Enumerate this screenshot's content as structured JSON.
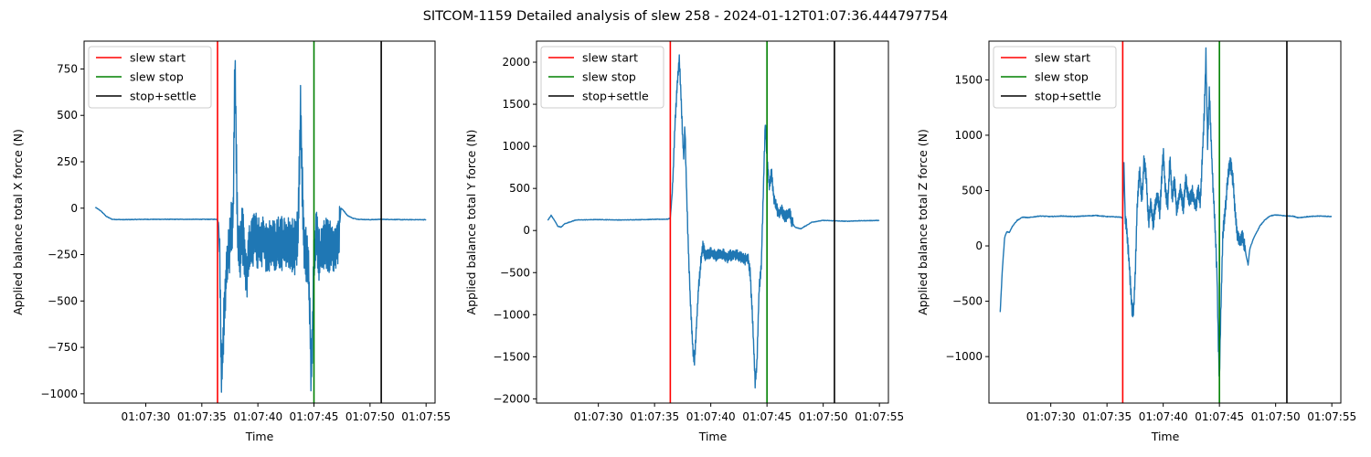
{
  "figure": {
    "suptitle": "SITCOM-1159 Detailed analysis of slew 258 - 2024-01-12T01:07:36.444797754"
  },
  "colors": {
    "data_line": "#1f77b4",
    "slew_start": "#ff0000",
    "slew_stop": "#008000",
    "stop_settle": "#000000"
  },
  "legend": {
    "placement": "upper-left",
    "entries": [
      {
        "label": "slew start",
        "color": "#ff0000"
      },
      {
        "label": "slew stop",
        "color": "#008000"
      },
      {
        "label": "stop+settle",
        "color": "#000000"
      }
    ]
  },
  "chart_data": [
    {
      "type": "line",
      "title": "",
      "xlabel": "Time",
      "ylabel": "Applied balance total X force (N)",
      "x_ticks": [
        "01:07:30",
        "01:07:35",
        "01:07:40",
        "01:07:45",
        "01:07:50",
        "01:07:55"
      ],
      "x_tick_seconds": [
        30,
        35,
        40,
        45,
        50,
        55
      ],
      "xlim_seconds": [
        24.5,
        55.8
      ],
      "ylim": [
        -1050,
        900
      ],
      "y_ticks": [
        750,
        500,
        250,
        0,
        -250,
        -500,
        -750,
        -1000
      ],
      "y_tick_labels": [
        "750",
        "500",
        "250",
        "0",
        "−250",
        "−500",
        "−750",
        "−1000"
      ],
      "vlines_seconds": {
        "slew_start": 36.4,
        "slew_stop": 45.0,
        "stop_settle": 51.0
      },
      "series": [
        {
          "style": "noisy",
          "points": [
            [
              25.5,
              5
            ],
            [
              26,
              -15
            ],
            [
              26.5,
              -45
            ],
            [
              27,
              -60
            ],
            [
              28,
              -62
            ],
            [
              30,
              -60
            ],
            [
              33,
              -60
            ],
            [
              35,
              -60
            ],
            [
              36.35,
              -60
            ],
            [
              36.5,
              -80
            ],
            [
              36.6,
              -300
            ],
            [
              36.7,
              -700
            ],
            [
              36.75,
              -870
            ],
            [
              36.85,
              -800
            ],
            [
              37,
              -550
            ],
            [
              37.2,
              -320
            ],
            [
              37.4,
              -250
            ],
            [
              37.6,
              -120
            ],
            [
              37.8,
              -30
            ],
            [
              37.95,
              815
            ],
            [
              38.05,
              400
            ],
            [
              38.2,
              -150
            ],
            [
              38.4,
              -260
            ],
            [
              38.6,
              -120
            ],
            [
              38.8,
              -240
            ],
            [
              39,
              -360
            ],
            [
              39.3,
              -210
            ],
            [
              39.7,
              -150
            ],
            [
              40,
              -200
            ],
            [
              40.5,
              -180
            ],
            [
              41,
              -210
            ],
            [
              41.5,
              -200
            ],
            [
              42,
              -180
            ],
            [
              42.5,
              -200
            ],
            [
              43,
              -190
            ],
            [
              43.4,
              -220
            ],
            [
              43.6,
              -100
            ],
            [
              43.8,
              540
            ],
            [
              43.95,
              150
            ],
            [
              44.1,
              -200
            ],
            [
              44.3,
              -250
            ],
            [
              44.5,
              -300
            ],
            [
              44.65,
              -600
            ],
            [
              44.75,
              -950
            ],
            [
              44.85,
              -700
            ],
            [
              45,
              -300
            ],
            [
              45.2,
              -150
            ],
            [
              45.5,
              -260
            ],
            [
              46,
              -200
            ],
            [
              46.5,
              -210
            ],
            [
              47,
              -200
            ],
            [
              47.2,
              -170
            ],
            [
              47.4,
              0
            ],
            [
              47.6,
              -10
            ],
            [
              48,
              -40
            ],
            [
              48.5,
              -55
            ],
            [
              49,
              -60
            ],
            [
              50,
              -62
            ],
            [
              51,
              -60
            ],
            [
              53,
              -62
            ],
            [
              55,
              -62
            ]
          ]
        }
      ]
    },
    {
      "type": "line",
      "title": "",
      "xlabel": "Time",
      "ylabel": "Applied balance total Y force (N)",
      "x_ticks": [
        "01:07:30",
        "01:07:35",
        "01:07:40",
        "01:07:45",
        "01:07:50",
        "01:07:55"
      ],
      "x_tick_seconds": [
        30,
        35,
        40,
        45,
        50,
        55
      ],
      "xlim_seconds": [
        24.5,
        55.8
      ],
      "ylim": [
        -2050,
        2250
      ],
      "y_ticks": [
        2000,
        1500,
        1000,
        500,
        0,
        -500,
        -1000,
        -1500,
        -2000
      ],
      "y_tick_labels": [
        "2000",
        "1500",
        "1000",
        "500",
        "0",
        "−500",
        "−1000",
        "−1500",
        "−2000"
      ],
      "vlines_seconds": {
        "slew_start": 36.4,
        "slew_stop": 45.0,
        "stop_settle": 51.0
      },
      "series": [
        {
          "style": "medium",
          "points": [
            [
              25.5,
              120
            ],
            [
              25.8,
              180
            ],
            [
              26.1,
              120
            ],
            [
              26.4,
              50
            ],
            [
              26.7,
              40
            ],
            [
              27,
              80
            ],
            [
              28,
              125
            ],
            [
              30,
              130
            ],
            [
              32,
              125
            ],
            [
              34,
              130
            ],
            [
              36.2,
              135
            ],
            [
              36.4,
              150
            ],
            [
              36.6,
              500
            ],
            [
              36.8,
              1200
            ],
            [
              37,
              1700
            ],
            [
              37.2,
              2030
            ],
            [
              37.35,
              1600
            ],
            [
              37.5,
              1100
            ],
            [
              37.6,
              850
            ],
            [
              37.7,
              1250
            ],
            [
              37.8,
              700
            ],
            [
              38,
              -200
            ],
            [
              38.2,
              -900
            ],
            [
              38.4,
              -1400
            ],
            [
              38.55,
              -1560
            ],
            [
              38.7,
              -1200
            ],
            [
              38.9,
              -700
            ],
            [
              39.1,
              -400
            ],
            [
              39.3,
              -180
            ],
            [
              39.5,
              -300
            ],
            [
              40,
              -260
            ],
            [
              40.5,
              -300
            ],
            [
              41,
              -280
            ],
            [
              41.5,
              -320
            ],
            [
              42,
              -280
            ],
            [
              42.5,
              -300
            ],
            [
              43,
              -350
            ],
            [
              43.3,
              -320
            ],
            [
              43.5,
              -500
            ],
            [
              43.7,
              -1000
            ],
            [
              43.85,
              -1500
            ],
            [
              43.95,
              -1800
            ],
            [
              44.1,
              -1600
            ],
            [
              44.3,
              -700
            ],
            [
              44.5,
              -400
            ],
            [
              44.7,
              600
            ],
            [
              44.85,
              1280
            ],
            [
              45,
              900
            ],
            [
              45.2,
              500
            ],
            [
              45.4,
              700
            ],
            [
              45.6,
              400
            ],
            [
              45.8,
              300
            ],
            [
              46,
              200
            ],
            [
              46.3,
              250
            ],
            [
              46.6,
              150
            ],
            [
              46.9,
              200
            ],
            [
              47,
              220
            ],
            [
              47.2,
              100
            ],
            [
              47.5,
              40
            ],
            [
              48,
              20
            ],
            [
              48.5,
              60
            ],
            [
              49,
              100
            ],
            [
              50,
              120
            ],
            [
              51,
              115
            ],
            [
              52,
              110
            ],
            [
              53,
              115
            ],
            [
              55,
              120
            ]
          ]
        }
      ]
    },
    {
      "type": "line",
      "title": "",
      "xlabel": "Time",
      "ylabel": "Applied balance total Z force (N)",
      "x_ticks": [
        "01:07:30",
        "01:07:35",
        "01:07:40",
        "01:07:45",
        "01:07:50",
        "01:07:55"
      ],
      "x_tick_seconds": [
        30,
        35,
        40,
        45,
        50,
        55
      ],
      "xlim_seconds": [
        24.5,
        55.8
      ],
      "ylim": [
        -1420,
        1850
      ],
      "y_ticks": [
        1500,
        1000,
        500,
        0,
        -500,
        -1000
      ],
      "y_tick_labels": [
        "1500",
        "1000",
        "500",
        "0",
        "−500",
        "−1000"
      ],
      "vlines_seconds": {
        "slew_start": 36.4,
        "slew_stop": 45.0,
        "stop_settle": 51.0
      },
      "series": [
        {
          "style": "medium",
          "points": [
            [
              25.5,
              -600
            ],
            [
              25.7,
              -200
            ],
            [
              25.9,
              80
            ],
            [
              26.1,
              130
            ],
            [
              26.3,
              120
            ],
            [
              26.6,
              180
            ],
            [
              27,
              230
            ],
            [
              27.5,
              260
            ],
            [
              28,
              255
            ],
            [
              29,
              270
            ],
            [
              30,
              265
            ],
            [
              31,
              270
            ],
            [
              32,
              265
            ],
            [
              33,
              270
            ],
            [
              34,
              275
            ],
            [
              35,
              265
            ],
            [
              36.2,
              260
            ],
            [
              36.4,
              250
            ],
            [
              36.5,
              800
            ],
            [
              36.6,
              300
            ],
            [
              36.8,
              100
            ],
            [
              37,
              -200
            ],
            [
              37.2,
              -550
            ],
            [
              37.35,
              -600
            ],
            [
              37.5,
              -300
            ],
            [
              37.7,
              400
            ],
            [
              37.9,
              700
            ],
            [
              38.1,
              400
            ],
            [
              38.3,
              800
            ],
            [
              38.5,
              600
            ],
            [
              38.7,
              200
            ],
            [
              38.9,
              400
            ],
            [
              39.1,
              200
            ],
            [
              39.3,
              350
            ],
            [
              39.5,
              450
            ],
            [
              39.7,
              300
            ],
            [
              40,
              850
            ],
            [
              40.2,
              500
            ],
            [
              40.4,
              350
            ],
            [
              40.6,
              800
            ],
            [
              40.8,
              400
            ],
            [
              41,
              600
            ],
            [
              41.2,
              300
            ],
            [
              41.5,
              500
            ],
            [
              41.8,
              350
            ],
            [
              42,
              600
            ],
            [
              42.3,
              400
            ],
            [
              42.6,
              480
            ],
            [
              42.9,
              350
            ],
            [
              43.1,
              500
            ],
            [
              43.3,
              400
            ],
            [
              43.5,
              850
            ],
            [
              43.65,
              1200
            ],
            [
              43.8,
              1720
            ],
            [
              43.95,
              900
            ],
            [
              44.1,
              1400
            ],
            [
              44.25,
              1000
            ],
            [
              44.4,
              600
            ],
            [
              44.6,
              200
            ],
            [
              44.8,
              -300
            ],
            [
              44.9,
              -900
            ],
            [
              45,
              -1200
            ],
            [
              45.1,
              -700
            ],
            [
              45.3,
              100
            ],
            [
              45.5,
              300
            ],
            [
              45.7,
              550
            ],
            [
              45.85,
              700
            ],
            [
              46,
              740
            ],
            [
              46.2,
              600
            ],
            [
              46.4,
              300
            ],
            [
              46.6,
              100
            ],
            [
              46.8,
              50
            ],
            [
              47,
              80
            ],
            [
              47.2,
              20
            ],
            [
              47.4,
              -100
            ],
            [
              47.55,
              -170
            ],
            [
              47.7,
              -30
            ],
            [
              48,
              60
            ],
            [
              48.3,
              120
            ],
            [
              48.6,
              180
            ],
            [
              49,
              230
            ],
            [
              49.5,
              270
            ],
            [
              50,
              280
            ],
            [
              51,
              270
            ],
            [
              51.5,
              270
            ],
            [
              52,
              255
            ],
            [
              53,
              265
            ],
            [
              54,
              270
            ],
            [
              55,
              265
            ]
          ]
        }
      ]
    }
  ]
}
